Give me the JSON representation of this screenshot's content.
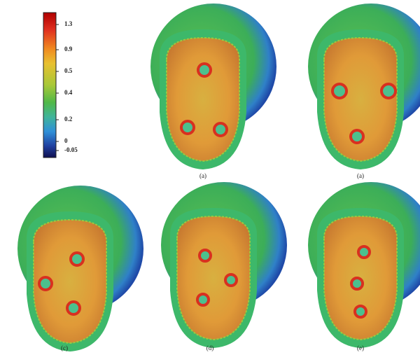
{
  "colorbar": {
    "ticks": [
      "1.3",
      "0.9",
      "0.5",
      "0.4",
      "0.2",
      "0",
      "-0.05"
    ]
  },
  "panels": [
    {
      "label": "(a)"
    },
    {
      "label": "(a)"
    },
    {
      "label": "(c)"
    },
    {
      "label": "(d)"
    },
    {
      "label": "(e)"
    }
  ]
}
